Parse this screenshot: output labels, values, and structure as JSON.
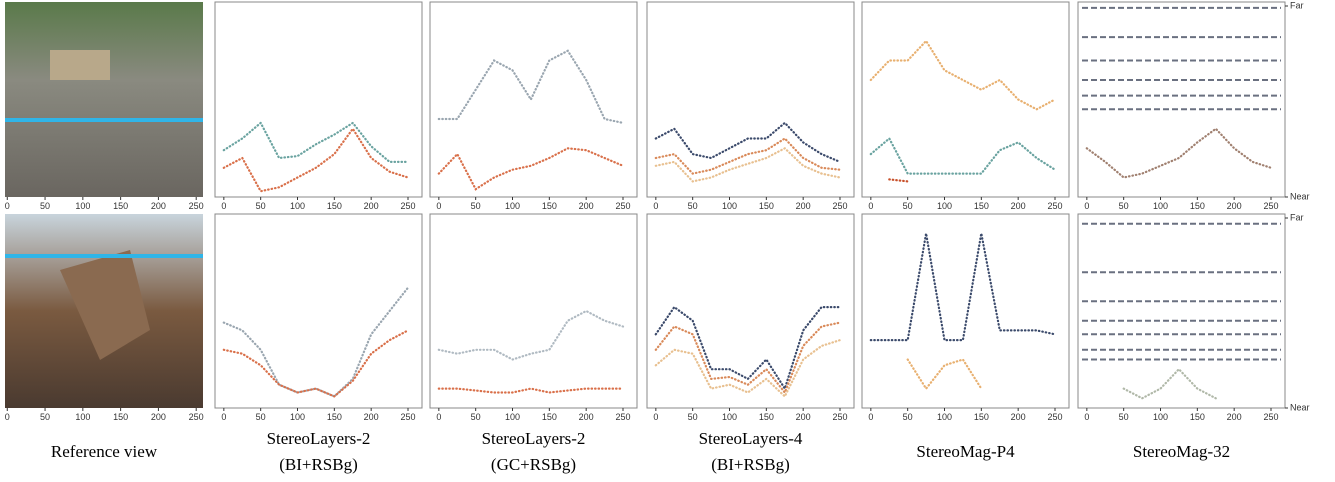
{
  "column_titles": [
    [
      "Reference view"
    ],
    [
      "StereoLayers-2",
      "(BI+RSBg)"
    ],
    [
      "StereoLayers-2",
      "(GC+RSBg)"
    ],
    [
      "StereoLayers-4",
      "(BI+RSBg)"
    ],
    [
      "StereoMag-P4"
    ],
    [
      "StereoMag-32"
    ]
  ],
  "reference_views": [
    {
      "xlim": [
        -3,
        259
      ],
      "xticks": [
        0,
        50,
        100,
        150,
        200,
        250
      ]
    },
    {
      "xlim": [
        -3,
        259
      ],
      "xticks": [
        0,
        50,
        100,
        150,
        200,
        250
      ]
    }
  ],
  "chart_data": [
    {
      "type": "line",
      "x": [
        0,
        25,
        50,
        75,
        100,
        125,
        150,
        175,
        200,
        225,
        250
      ],
      "xlim": [
        -12,
        269
      ],
      "xticks": [
        0,
        50,
        100,
        150,
        200,
        250
      ],
      "ylim": [
        0,
        100
      ],
      "series": [
        {
          "color": "#6aa3a0",
          "values": [
            24,
            30,
            38,
            20,
            21,
            27,
            32,
            38,
            26,
            18,
            18
          ]
        },
        {
          "color": "#d9704a",
          "values": [
            15,
            20,
            3,
            5,
            10,
            15,
            22,
            35,
            20,
            13,
            10
          ]
        }
      ]
    },
    {
      "type": "line",
      "x": [
        0,
        25,
        50,
        75,
        100,
        125,
        150,
        175,
        200,
        225,
        250
      ],
      "xlim": [
        -12,
        269
      ],
      "xticks": [
        0,
        50,
        100,
        150,
        200,
        250
      ],
      "ylim": [
        0,
        100
      ],
      "series": [
        {
          "color": "#9aa6b0",
          "values": [
            40,
            40,
            55,
            70,
            65,
            50,
            70,
            75,
            60,
            40,
            38
          ]
        },
        {
          "color": "#d9704a",
          "values": [
            12,
            22,
            4,
            10,
            14,
            16,
            20,
            25,
            24,
            20,
            16
          ]
        }
      ]
    },
    {
      "type": "line",
      "x": [
        0,
        25,
        50,
        75,
        100,
        125,
        150,
        175,
        200,
        225,
        250
      ],
      "xlim": [
        -12,
        269
      ],
      "xticks": [
        0,
        50,
        100,
        150,
        200,
        250
      ],
      "ylim": [
        0,
        100
      ],
      "series": [
        {
          "color": "#3b4a6b",
          "values": [
            30,
            35,
            22,
            20,
            25,
            30,
            30,
            38,
            28,
            22,
            18
          ]
        },
        {
          "color": "#d98a5a",
          "values": [
            20,
            22,
            12,
            14,
            18,
            22,
            24,
            30,
            20,
            15,
            14
          ]
        },
        {
          "color": "#e8c090",
          "values": [
            16,
            18,
            8,
            10,
            14,
            17,
            20,
            25,
            16,
            12,
            10
          ]
        }
      ]
    },
    {
      "type": "line",
      "x": [
        0,
        25,
        50,
        75,
        100,
        125,
        150,
        175,
        200,
        225,
        250
      ],
      "xlim": [
        -12,
        269
      ],
      "xticks": [
        0,
        50,
        100,
        150,
        200,
        250
      ],
      "ylim": [
        0,
        100
      ],
      "series": [
        {
          "color": "#e8b070",
          "values": [
            60,
            70,
            70,
            80,
            65,
            60,
            55,
            60,
            50,
            45,
            50
          ]
        },
        {
          "color": "#6aa3a0",
          "values": [
            22,
            30,
            12,
            12,
            12,
            12,
            12,
            24,
            28,
            20,
            14
          ]
        },
        {
          "color": "#c8502a",
          "values": [
            null,
            9,
            8,
            null,
            null,
            null,
            null,
            null,
            null,
            null,
            null
          ]
        }
      ]
    },
    {
      "type": "hlines",
      "x": [
        0,
        25,
        50,
        75,
        100,
        125,
        150,
        175,
        200,
        225,
        250
      ],
      "xlim": [
        -12,
        269
      ],
      "xticks": [
        0,
        50,
        100,
        150,
        200,
        250
      ],
      "ylim": [
        0,
        100
      ],
      "yticks": [
        {
          "value": 0,
          "label": "Near"
        },
        {
          "value": 100,
          "label": "Far"
        }
      ],
      "levels": [
        97,
        82,
        70,
        60,
        52,
        45
      ],
      "series": [
        {
          "color": "#a08070",
          "values": [
            25,
            18,
            10,
            12,
            16,
            20,
            28,
            35,
            25,
            18,
            15
          ]
        }
      ]
    },
    {
      "type": "line",
      "x": [
        0,
        25,
        50,
        75,
        100,
        125,
        150,
        175,
        200,
        225,
        250
      ],
      "xlim": [
        -12,
        269
      ],
      "xticks": [
        0,
        50,
        100,
        150,
        200,
        250
      ],
      "ylim": [
        0,
        100
      ],
      "series": [
        {
          "color": "#9aa6b0",
          "values": [
            44,
            40,
            30,
            12,
            8,
            10,
            6,
            15,
            38,
            50,
            62
          ]
        },
        {
          "color": "#d9704a",
          "values": [
            30,
            28,
            22,
            12,
            8,
            10,
            6,
            14,
            28,
            35,
            40
          ]
        }
      ]
    },
    {
      "type": "line",
      "x": [
        0,
        25,
        50,
        75,
        100,
        125,
        150,
        175,
        200,
        225,
        250
      ],
      "xlim": [
        -12,
        269
      ],
      "xticks": [
        0,
        50,
        100,
        150,
        200,
        250
      ],
      "ylim": [
        0,
        100
      ],
      "series": [
        {
          "color": "#b0bac2",
          "values": [
            30,
            28,
            30,
            30,
            25,
            28,
            30,
            45,
            50,
            45,
            42
          ]
        },
        {
          "color": "#d9704a",
          "values": [
            10,
            10,
            9,
            8,
            8,
            10,
            8,
            9,
            10,
            10,
            10
          ]
        }
      ]
    },
    {
      "type": "line",
      "x": [
        0,
        25,
        50,
        75,
        100,
        125,
        150,
        175,
        200,
        225,
        250
      ],
      "xlim": [
        -12,
        269
      ],
      "xticks": [
        0,
        50,
        100,
        150,
        200,
        250
      ],
      "ylim": [
        0,
        100
      ],
      "series": [
        {
          "color": "#3b4a6b",
          "values": [
            38,
            52,
            45,
            20,
            20,
            15,
            25,
            10,
            40,
            52,
            52
          ]
        },
        {
          "color": "#d98a5a",
          "values": [
            30,
            42,
            38,
            15,
            16,
            12,
            20,
            8,
            32,
            42,
            44
          ]
        },
        {
          "color": "#e8c090",
          "values": [
            22,
            30,
            28,
            10,
            12,
            8,
            15,
            6,
            25,
            32,
            35
          ]
        }
      ]
    },
    {
      "type": "line",
      "x": [
        0,
        25,
        50,
        75,
        100,
        125,
        150,
        175,
        200,
        225,
        250
      ],
      "xlim": [
        -12,
        269
      ],
      "xticks": [
        0,
        50,
        100,
        150,
        200,
        250
      ],
      "ylim": [
        0,
        100
      ],
      "series": [
        {
          "color": "#3b4a6b",
          "values": [
            35,
            35,
            35,
            90,
            35,
            35,
            90,
            40,
            40,
            40,
            38
          ]
        },
        {
          "color": "#e8b070",
          "values": [
            null,
            null,
            25,
            10,
            22,
            25,
            10,
            null,
            null,
            null,
            null
          ]
        }
      ]
    },
    {
      "type": "hlines",
      "x": [
        0,
        25,
        50,
        75,
        100,
        125,
        150,
        175,
        200,
        225,
        250
      ],
      "xlim": [
        -12,
        269
      ],
      "xticks": [
        0,
        50,
        100,
        150,
        200,
        250
      ],
      "ylim": [
        0,
        100
      ],
      "yticks": [
        {
          "value": 0,
          "label": "Near"
        },
        {
          "value": 100,
          "label": "Far"
        }
      ],
      "levels": [
        95,
        70,
        55,
        45,
        38,
        30,
        25
      ],
      "series": [
        {
          "color": "#b0b8a8",
          "values": [
            null,
            null,
            10,
            5,
            10,
            20,
            10,
            5,
            null,
            null,
            null
          ]
        }
      ]
    }
  ]
}
